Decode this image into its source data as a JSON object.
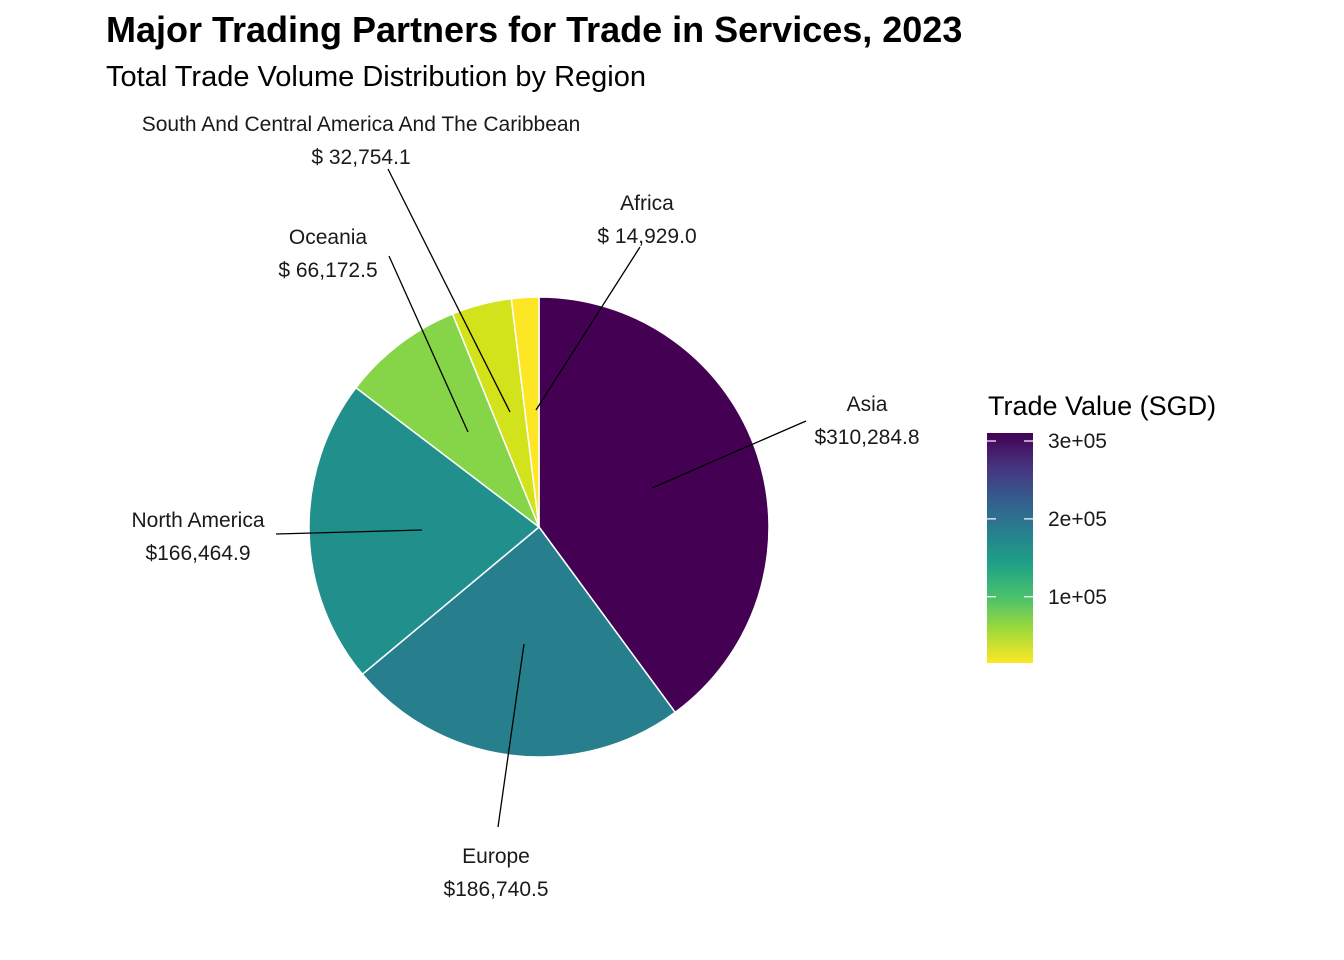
{
  "chart_data": {
    "type": "pie",
    "title": "Major Trading Partners for Trade in Services, 2023",
    "subtitle": "Total Trade Volume Distribution by Region",
    "slices": [
      {
        "label": "Asia",
        "value": 310284.8,
        "value_label": "$310,284.8",
        "color": "#440154"
      },
      {
        "label": "Europe",
        "value": 186740.5,
        "value_label": "$186,740.5",
        "color": "#277f8e"
      },
      {
        "label": "North America",
        "value": 166464.9,
        "value_label": "$166,464.9",
        "color": "#21908c"
      },
      {
        "label": "Oceania",
        "value": 66172.5,
        "value_label": "$ 66,172.5",
        "color": "#86d549"
      },
      {
        "label": "South And Central America And The Caribbean",
        "value": 32754.1,
        "value_label": "$ 32,754.1",
        "color": "#d2e21b"
      },
      {
        "label": "Africa",
        "value": 14929.0,
        "value_label": "$ 14,929.0",
        "color": "#fde725"
      }
    ],
    "legend": {
      "title": "Trade Value (SGD)",
      "type": "colorbar",
      "palette": [
        "#fde725",
        "#a0da39",
        "#4ac16d",
        "#1fa187",
        "#277f8e",
        "#365c8d",
        "#46327e",
        "#440154"
      ],
      "range": [
        14929.0,
        310284.8
      ],
      "ticks": [
        {
          "value": 300000,
          "label": "3e+05"
        },
        {
          "value": 200000,
          "label": "2e+05"
        },
        {
          "value": 100000,
          "label": "1e+05"
        }
      ]
    }
  }
}
